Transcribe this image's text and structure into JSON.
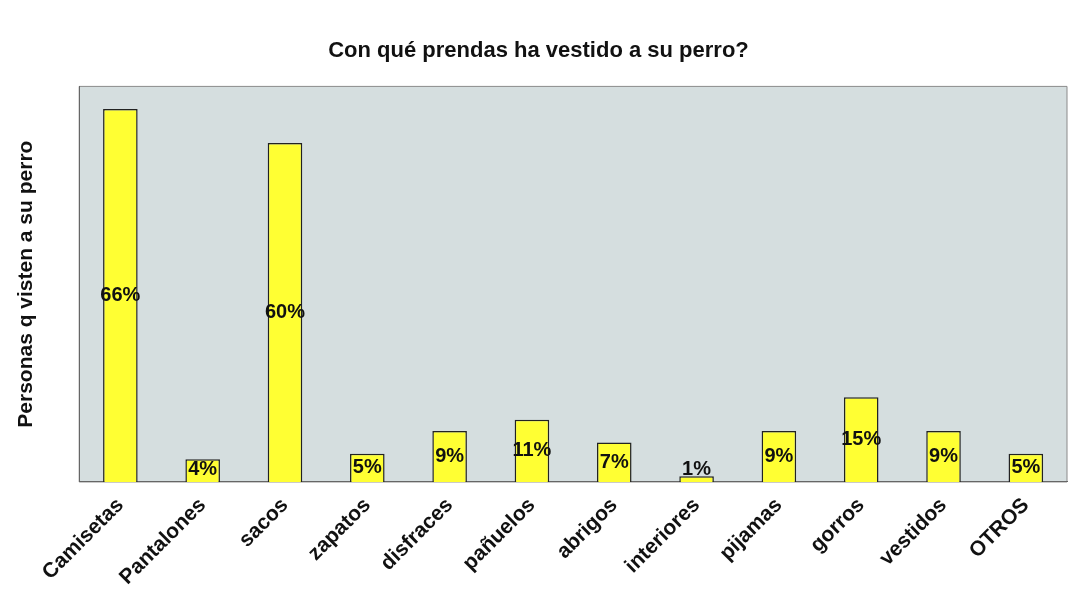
{
  "chart_data": {
    "type": "bar",
    "title": "Con qué prendas ha vestido a su perro?",
    "ylabel": "Personas q visten a su perro",
    "categories": [
      "Camisetas",
      "Pantalones",
      "sacos",
      "zapatos",
      "disfraces",
      "pañuelos",
      "abrigos",
      "interiores",
      "pijamas",
      "gorros",
      "vestidos",
      "OTROS"
    ],
    "values": [
      66,
      4,
      60,
      5,
      9,
      11,
      7,
      1,
      9,
      15,
      9,
      5
    ],
    "value_labels": [
      "66%",
      "4%",
      "60%",
      "5%",
      "9%",
      "11%",
      "7%",
      "1%",
      "9%",
      "15%",
      "9%",
      "5%"
    ],
    "color": "#ffff33",
    "grid": false,
    "legend": false,
    "tick_labels": "x"
  }
}
